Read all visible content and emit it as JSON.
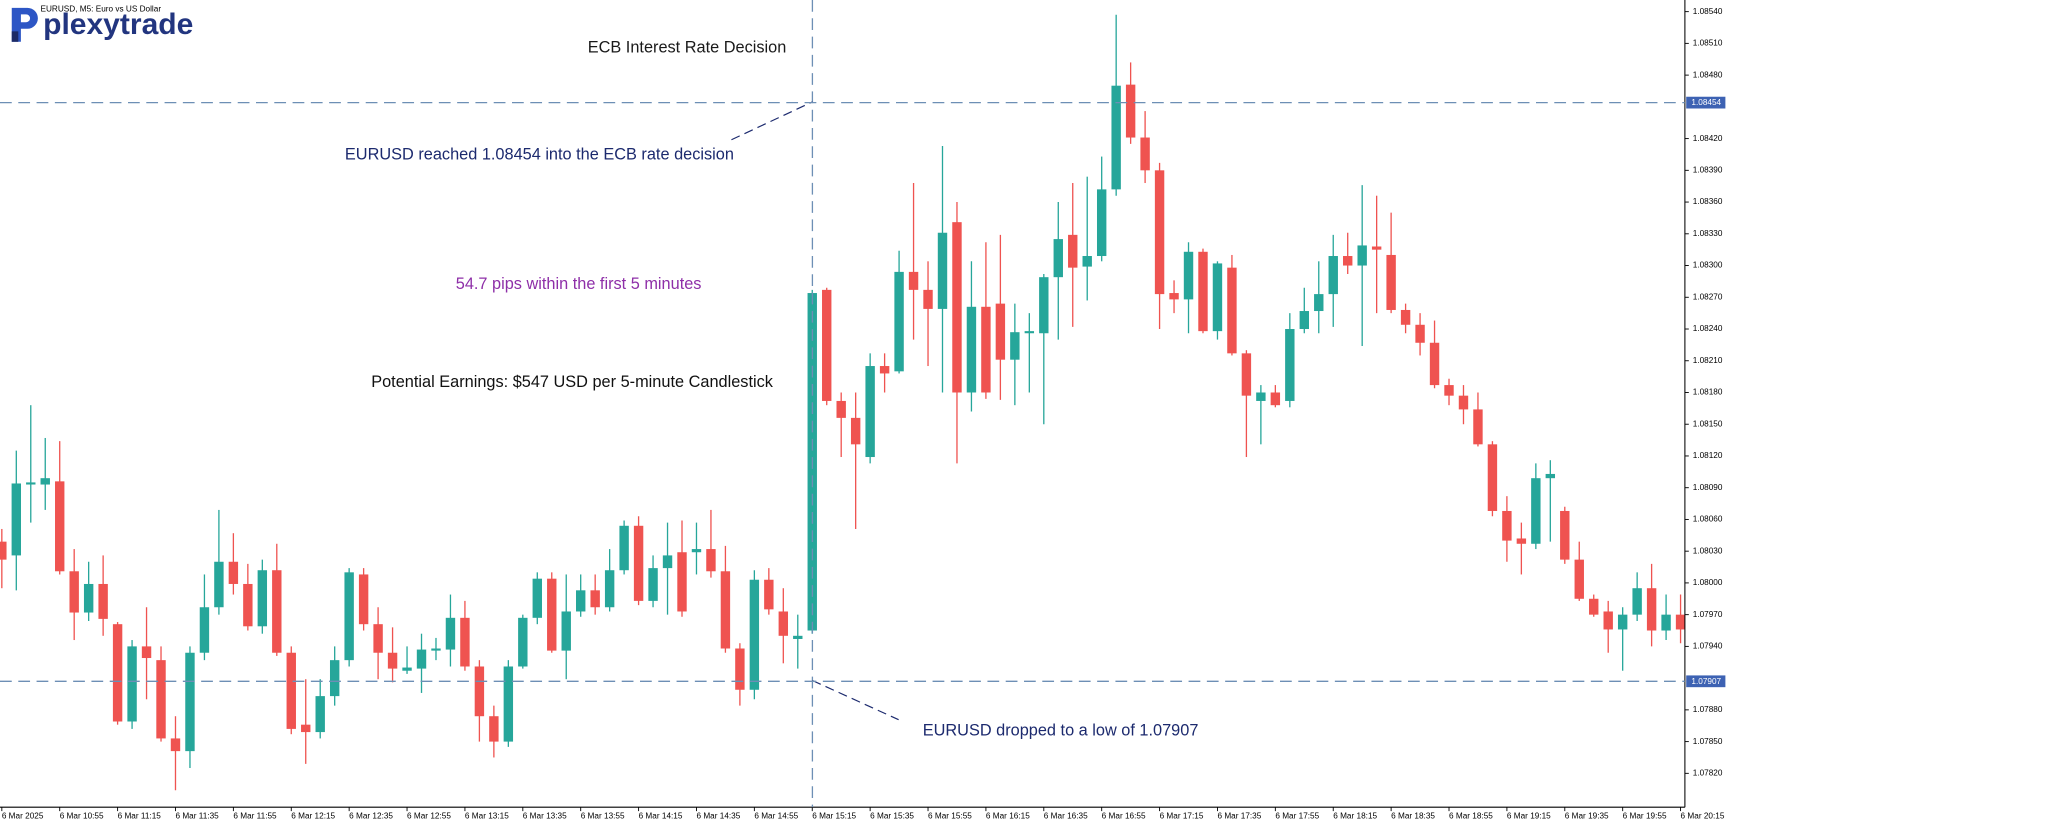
{
  "chart_data": {
    "type": "candlestick",
    "title": "EURUSD, M5: Euro vs US Dollar",
    "logo": "plexytrade",
    "up_color": "#26a69a",
    "down_color": "#ef5350",
    "categories": [
      "6 Mar 2025",
      null,
      null,
      null,
      "6 Mar 10:55",
      null,
      null,
      null,
      "6 Mar 11:15",
      null,
      null,
      null,
      "6 Mar 11:35",
      null,
      null,
      null,
      "6 Mar 11:55",
      null,
      null,
      null,
      "6 Mar 12:15",
      null,
      null,
      null,
      "6 Mar 12:35",
      null,
      null,
      null,
      "6 Mar 12:55",
      null,
      null,
      null,
      "6 Mar 13:15",
      null,
      null,
      null,
      "6 Mar 13:35",
      null,
      null,
      null,
      "6 Mar 13:55",
      null,
      null,
      null,
      "6 Mar 14:15",
      null,
      null,
      null,
      "6 Mar 14:35",
      null,
      null,
      null,
      "6 Mar 14:55",
      null,
      null,
      null,
      "6 Mar 15:15",
      null,
      null,
      null,
      "6 Mar 15:35",
      null,
      null,
      null,
      "6 Mar 15:55",
      null,
      null,
      null,
      "6 Mar 16:15",
      null,
      null,
      null,
      "6 Mar 16:35",
      null,
      null,
      null,
      "6 Mar 16:55",
      null,
      null,
      null,
      "6 Mar 17:15",
      null,
      null,
      null,
      "6 Mar 17:35",
      null,
      null,
      null,
      "6 Mar 17:55",
      null,
      null,
      null,
      "6 Mar 18:15",
      null,
      null,
      null,
      "6 Mar 18:35",
      null,
      null,
      null,
      "6 Mar 18:55",
      null,
      null,
      null,
      "6 Mar 19:15",
      null,
      null,
      null,
      "6 Mar 19:35",
      null,
      null,
      null,
      "6 Mar 19:55",
      null,
      null,
      null,
      "6 Mar 20:15"
    ],
    "open": [
      1.08039,
      1.08026,
      1.08093,
      1.08093,
      1.08096,
      1.08011,
      1.07972,
      1.07999,
      1.07961,
      1.07869,
      1.0794,
      1.07927,
      1.07853,
      1.07841,
      1.07934,
      1.07977,
      1.0802,
      1.07999,
      1.07959,
      1.08012,
      1.07934,
      1.07866,
      1.07859,
      1.07893,
      1.07927,
      1.08008,
      1.07961,
      1.07934,
      1.07917,
      1.07919,
      1.07936,
      1.07937,
      1.07967,
      1.07921,
      1.07874,
      1.0785,
      1.07921,
      1.07967,
      1.08004,
      1.07936,
      1.07973,
      1.07993,
      1.07977,
      1.08012,
      1.08054,
      1.07983,
      1.08014,
      1.08029,
      1.08029,
      1.08032,
      1.08011,
      1.07938,
      1.07899,
      1.08003,
      1.07973,
      1.07947,
      1.07955,
      1.08277,
      1.08172,
      1.08156,
      1.08119,
      1.08205,
      1.082,
      1.08294,
      1.08277,
      1.08259,
      1.08341,
      1.0818,
      1.08261,
      1.08264,
      1.08211,
      1.08236,
      1.08236,
      1.08289,
      1.08329,
      1.08299,
      1.08309,
      1.08372,
      1.08471,
      1.08421,
      1.0839,
      1.08274,
      1.08268,
      1.08313,
      1.08238,
      1.08298,
      1.08217,
      1.08172,
      1.0818,
      1.08172,
      1.0824,
      1.08257,
      1.08273,
      1.08309,
      1.083,
      1.08318,
      1.0831,
      1.08258,
      1.08244,
      1.08227,
      1.08187,
      1.08177,
      1.08164,
      1.08131,
      1.08068,
      1.08042,
      1.08037,
      1.08099,
      1.08068,
      1.08022,
      1.07985,
      1.07973,
      1.07956,
      1.0797,
      1.07995,
      1.07955,
      1.0797
    ],
    "high": [
      1.08051,
      1.08125,
      1.08168,
      1.08137,
      1.08134,
      1.08032,
      1.0802,
      1.08026,
      1.07963,
      1.07946,
      1.07977,
      1.0794,
      1.07874,
      1.0794,
      1.08008,
      1.08069,
      1.08047,
      1.08018,
      1.08022,
      1.08037,
      1.0794,
      1.07909,
      1.07909,
      1.0794,
      1.08014,
      1.08014,
      1.07977,
      1.07958,
      1.0794,
      1.07952,
      1.07948,
      1.07989,
      1.07983,
      1.07927,
      1.07884,
      1.07927,
      1.0797,
      1.0801,
      1.0801,
      1.08008,
      1.08008,
      1.08008,
      1.08032,
      1.08059,
      1.08063,
      1.08026,
      1.08057,
      1.08059,
      1.08057,
      1.08069,
      1.08035,
      1.07943,
      1.08012,
      1.08014,
      1.07995,
      1.0797,
      1.08277,
      1.08279,
      1.0818,
      1.0818,
      1.08217,
      1.08217,
      1.08314,
      1.08378,
      1.08304,
      1.08413,
      1.0836,
      1.08304,
      1.08322,
      1.08329,
      1.08264,
      1.08255,
      1.08292,
      1.0836,
      1.08378,
      1.08384,
      1.08403,
      1.08537,
      1.08492,
      1.08446,
      1.08397,
      1.08286,
      1.08322,
      1.08316,
      1.08304,
      1.0831,
      1.0822,
      1.08187,
      1.08187,
      1.08255,
      1.08279,
      1.08304,
      1.08329,
      1.08331,
      1.08376,
      1.08366,
      1.0835,
      1.08264,
      1.08255,
      1.08248,
      1.08193,
      1.08187,
      1.0818,
      1.08134,
      1.08082,
      1.08057,
      1.08113,
      1.08116,
      1.08072,
      1.08039,
      1.07989,
      1.07983,
      1.07977,
      1.0801,
      1.08018,
      1.07989,
      1.07989
    ],
    "low": [
      1.07995,
      1.07993,
      1.08057,
      1.08069,
      1.08008,
      1.07946,
      1.07964,
      1.0795,
      1.07866,
      1.07862,
      1.0789,
      1.0785,
      1.07804,
      1.07825,
      1.07927,
      1.0797,
      1.07989,
      1.07955,
      1.07952,
      1.07931,
      1.07857,
      1.07829,
      1.07853,
      1.07884,
      1.07921,
      1.07955,
      1.07909,
      1.07906,
      1.07914,
      1.07896,
      1.07927,
      1.07921,
      1.07917,
      1.0785,
      1.07835,
      1.07845,
      1.07919,
      1.07961,
      1.07934,
      1.07909,
      1.07968,
      1.0797,
      1.07973,
      1.08008,
      1.07979,
      1.07977,
      1.0797,
      1.07968,
      1.08008,
      1.08005,
      1.07934,
      1.07884,
      1.0789,
      1.0797,
      1.07924,
      1.07919,
      1.07952,
      1.08168,
      1.08119,
      1.08051,
      1.08113,
      1.0818,
      1.08198,
      1.0823,
      1.08205,
      1.0818,
      1.08113,
      1.08162,
      1.08174,
      1.08173,
      1.08168,
      1.0818,
      1.0815,
      1.0823,
      1.08242,
      1.08267,
      1.08304,
      1.08366,
      1.08415,
      1.08378,
      1.0824,
      1.08255,
      1.08236,
      1.08236,
      1.0823,
      1.08215,
      1.08119,
      1.08131,
      1.08166,
      1.08166,
      1.08236,
      1.08236,
      1.08242,
      1.08292,
      1.08224,
      1.08255,
      1.08255,
      1.08236,
      1.08215,
      1.08184,
      1.08168,
      1.0815,
      1.08129,
      1.08063,
      1.0802,
      1.08008,
      1.08032,
      1.08039,
      1.08018,
      1.07983,
      1.07968,
      1.07934,
      1.07917,
      1.07964,
      1.0794,
      1.07946,
      1.07943
    ],
    "close": [
      1.08022,
      1.08094,
      1.08095,
      1.08099,
      1.08011,
      1.07972,
      1.07999,
      1.07966,
      1.07869,
      1.0794,
      1.07929,
      1.07853,
      1.07841,
      1.07934,
      1.07977,
      1.0802,
      1.07999,
      1.07959,
      1.08012,
      1.07934,
      1.07862,
      1.07859,
      1.07893,
      1.07927,
      1.0801,
      1.07961,
      1.07934,
      1.07919,
      1.0792,
      1.07937,
      1.07938,
      1.07967,
      1.07921,
      1.07874,
      1.0785,
      1.07921,
      1.07967,
      1.08004,
      1.07936,
      1.07973,
      1.07993,
      1.07977,
      1.08012,
      1.08054,
      1.07983,
      1.08014,
      1.08026,
      1.07973,
      1.08032,
      1.08011,
      1.07938,
      1.07899,
      1.08003,
      1.07975,
      1.0795,
      1.0795,
      1.08274,
      1.08172,
      1.08156,
      1.08131,
      1.08205,
      1.08198,
      1.08294,
      1.08277,
      1.08259,
      1.08331,
      1.0818,
      1.08261,
      1.0818,
      1.08211,
      1.08237,
      1.08238,
      1.08289,
      1.08325,
      1.08298,
      1.08309,
      1.08372,
      1.0847,
      1.08421,
      1.0839,
      1.08273,
      1.08268,
      1.08313,
      1.08238,
      1.08302,
      1.08217,
      1.08177,
      1.0818,
      1.08168,
      1.0824,
      1.08257,
      1.08273,
      1.08309,
      1.083,
      1.08319,
      1.08315,
      1.08258,
      1.08244,
      1.08227,
      1.08187,
      1.08177,
      1.08164,
      1.08131,
      1.08068,
      1.0804,
      1.08037,
      1.08099,
      1.08103,
      1.08022,
      1.07985,
      1.0797,
      1.07956,
      1.0797,
      1.07995,
      1.07955,
      1.0797,
      1.07956
    ],
    "ylim": [
      1.07788,
      1.08551
    ],
    "yticks": [
      {
        "value": 1.0854,
        "label": "1.08540"
      },
      {
        "value": 1.0851,
        "label": "1.08510"
      },
      {
        "value": 1.0848,
        "label": "1.08480"
      },
      {
        "value": 1.0842,
        "label": "1.08420"
      },
      {
        "value": 1.0839,
        "label": "1.08390"
      },
      {
        "value": 1.0836,
        "label": "1.08360"
      },
      {
        "value": 1.0833,
        "label": "1.08330"
      },
      {
        "value": 1.083,
        "label": "1.08300"
      },
      {
        "value": 1.0827,
        "label": "1.08270"
      },
      {
        "value": 1.0824,
        "label": "1.08240"
      },
      {
        "value": 1.0821,
        "label": "1.08210"
      },
      {
        "value": 1.0818,
        "label": "1.08180"
      },
      {
        "value": 1.0815,
        "label": "1.08150"
      },
      {
        "value": 1.0812,
        "label": "1.08120"
      },
      {
        "value": 1.0809,
        "label": "1.08090"
      },
      {
        "value": 1.0806,
        "label": "1.08060"
      },
      {
        "value": 1.0803,
        "label": "1.08030"
      },
      {
        "value": 1.08,
        "label": "1.08000"
      },
      {
        "value": 1.0797,
        "label": "1.07970"
      },
      {
        "value": 1.0794,
        "label": "1.07940"
      },
      {
        "value": 1.0788,
        "label": "1.07880"
      },
      {
        "value": 1.0785,
        "label": "1.07850"
      },
      {
        "value": 1.0782,
        "label": "1.07820"
      }
    ],
    "levels": [
      1.08454,
      1.07907
    ],
    "level_color": "#6d8fb5",
    "grid": false,
    "annotations": [
      {
        "text": "ECB Interest Rate Decision",
        "color": "#1a1a1a"
      },
      {
        "text": "EURUSD reached 1.08454 into the ECB rate decision",
        "color": "#1c2a6e"
      },
      {
        "text": "54.7 pips within the first 5 minutes",
        "color": "#8e2fa8"
      },
      {
        "text": "Potential Earnings: $547 USD per 5-minute Candlestick",
        "color": "#111111"
      },
      {
        "text": "EURUSD dropped to a low of 1.07907",
        "color": "#1c2a6e"
      }
    ]
  }
}
